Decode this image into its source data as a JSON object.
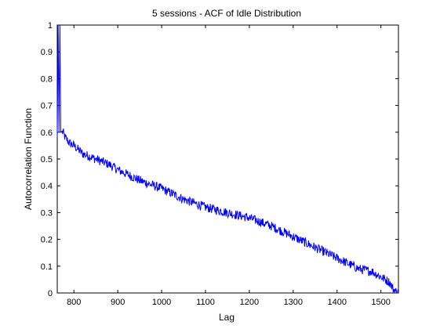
{
  "chart_data": {
    "type": "line",
    "title": "5 sessions - ACF of Idle Distribution",
    "xlabel": "Lag",
    "ylabel": "Autocorrelation Function",
    "xlim": [
      762,
      1540
    ],
    "ylim": [
      0,
      1
    ],
    "xticks": [
      800,
      900,
      1000,
      1100,
      1200,
      1300,
      1400,
      1500
    ],
    "yticks": [
      0,
      0.1,
      0.2,
      0.3,
      0.4,
      0.5,
      0.6,
      0.7,
      0.8,
      0.9,
      1
    ],
    "ytick_labels": [
      "0",
      "0.1",
      "0.2",
      "0.3",
      "0.4",
      "0.5",
      "0.6",
      "0.7",
      "0.8",
      "0.9",
      "1"
    ],
    "grid": false,
    "legend": "none",
    "line_color": "#0000ff",
    "series": [
      {
        "x": [
          762,
          764,
          766,
          768,
          770,
          775,
          780,
          790,
          800,
          820,
          850,
          880,
          900,
          950,
          1000,
          1050,
          1100,
          1150,
          1200,
          1250,
          1300,
          1350,
          1400,
          1450,
          1480,
          1500,
          1520,
          1530,
          1540
        ],
        "values": [
          0.58,
          1.0,
          0.6,
          1.0,
          0.6,
          0.6,
          0.58,
          0.56,
          0.55,
          0.52,
          0.5,
          0.48,
          0.46,
          0.42,
          0.39,
          0.35,
          0.32,
          0.3,
          0.28,
          0.25,
          0.21,
          0.17,
          0.13,
          0.09,
          0.08,
          0.06,
          0.04,
          0.01,
          0.0
        ]
      }
    ]
  }
}
